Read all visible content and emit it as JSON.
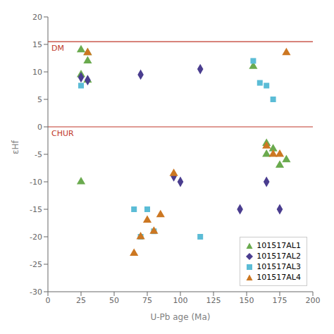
{
  "chart_data": {
    "type": "scatter",
    "xlabel": "U-Pb age (Ma)",
    "ylabel": "εHf",
    "xlim": [
      0,
      200
    ],
    "ylim": [
      -30,
      20
    ],
    "xticks": [
      0,
      25,
      50,
      75,
      100,
      125,
      150,
      175,
      200
    ],
    "yticks": [
      -30,
      -25,
      -20,
      -15,
      -10,
      -5,
      0,
      5,
      10,
      15,
      20
    ],
    "grid": false,
    "legend": "lower right",
    "reference_lines": [
      {
        "y": 15.5,
        "label": "DM",
        "color": "#c0392b"
      },
      {
        "y": 0,
        "label": "CHUR",
        "color": "#c0392b"
      }
    ],
    "series": [
      {
        "name": "101517AL1",
        "color": "#6aaa4e",
        "marker": "triangle",
        "x": [
          25,
          25,
          30,
          30,
          25,
          30,
          155,
          165,
          165,
          170,
          175,
          180
        ],
        "y": [
          14,
          9.5,
          13.5,
          12,
          -10,
          8.5,
          11,
          -3,
          -5,
          -4,
          -7,
          -6
        ]
      },
      {
        "name": "101517AL2",
        "color": "#4a3d8f",
        "marker": "diamond",
        "x": [
          25,
          30,
          70,
          95,
          100,
          115,
          145,
          165,
          175
        ],
        "y": [
          9,
          8.5,
          9.5,
          -9,
          -10,
          10.5,
          -15,
          -10,
          -15
        ]
      },
      {
        "name": "101517AL3",
        "color": "#5bbcd6",
        "marker": "square",
        "x": [
          25,
          65,
          70,
          75,
          80,
          115,
          155,
          160,
          165,
          170
        ],
        "y": [
          7.5,
          -15,
          -20,
          -15,
          -19,
          -20,
          12,
          8,
          7.5,
          5
        ]
      },
      {
        "name": "101517AL4",
        "color": "#cc7722",
        "marker": "triangle",
        "x": [
          30,
          65,
          70,
          75,
          80,
          85,
          95,
          165,
          170,
          175,
          180
        ],
        "y": [
          13.5,
          -23,
          -20,
          -17,
          -19,
          -16,
          -8.5,
          -3.5,
          -5,
          -5,
          13.5
        ]
      }
    ]
  }
}
